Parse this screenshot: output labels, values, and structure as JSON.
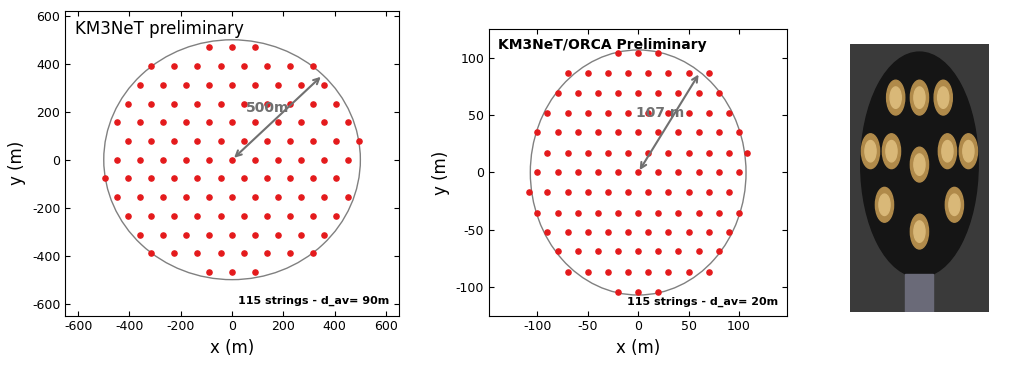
{
  "chart_data": [
    {
      "type": "scatter",
      "title": "KM3NeT preliminary",
      "annotation": "115 strings - d_av= 90m",
      "radius_label": "500m",
      "radius": 500,
      "x_label": "x (m)",
      "y_label": "y (m)",
      "color": "#e41a1c",
      "marker": "circle",
      "xlim": [
        -650,
        650
      ],
      "ylim": [
        -650,
        620
      ],
      "xticks": [
        -600,
        -400,
        -200,
        0,
        200,
        400,
        600
      ],
      "yticks": [
        -600,
        -400,
        -200,
        0,
        200,
        400,
        600
      ],
      "x": [
        -450,
        -360,
        -270,
        -180,
        -90,
        0,
        90,
        180,
        270,
        360,
        450,
        -405,
        -315,
        -225,
        -135,
        -45,
        45,
        135,
        225,
        315,
        405,
        -405,
        -315,
        -225,
        -135,
        -45,
        45,
        135,
        225,
        315,
        405,
        -450,
        -360,
        -270,
        -180,
        -90,
        0,
        90,
        180,
        270,
        360,
        450,
        -450,
        -360,
        -270,
        -180,
        -90,
        0,
        90,
        180,
        270,
        360,
        450,
        -405,
        -315,
        -225,
        -135,
        -45,
        45,
        135,
        225,
        315,
        405,
        -405,
        -315,
        -225,
        -135,
        -45,
        45,
        135,
        225,
        315,
        405,
        -360,
        -270,
        -180,
        -90,
        0,
        90,
        180,
        270,
        360,
        -360,
        -270,
        -180,
        -90,
        0,
        90,
        180,
        270,
        360,
        -225,
        -135,
        -45,
        45,
        135,
        225,
        -225,
        -135,
        -45,
        45,
        135,
        225,
        -90,
        0,
        90,
        -90,
        0,
        90,
        315,
        -315,
        315,
        -315,
        495,
        -495
      ],
      "y": [
        0,
        0,
        0,
        0,
        0,
        0,
        0,
        0,
        0,
        0,
        0,
        78,
        78,
        78,
        78,
        78,
        78,
        78,
        78,
        78,
        78,
        -78,
        -78,
        -78,
        -78,
        -78,
        -78,
        -78,
        -78,
        -78,
        -78,
        156,
        156,
        156,
        156,
        156,
        156,
        156,
        156,
        156,
        156,
        156,
        -156,
        -156,
        -156,
        -156,
        -156,
        -156,
        -156,
        -156,
        -156,
        -156,
        -156,
        234,
        234,
        234,
        234,
        234,
        234,
        234,
        234,
        234,
        234,
        -234,
        -234,
        -234,
        -234,
        -234,
        -234,
        -234,
        -234,
        -234,
        -234,
        312,
        312,
        312,
        312,
        312,
        312,
        312,
        312,
        312,
        -312,
        -312,
        -312,
        -312,
        -312,
        -312,
        -312,
        -312,
        -312,
        390,
        390,
        390,
        390,
        390,
        390,
        -390,
        -390,
        -390,
        -390,
        -390,
        -390,
        468,
        468,
        468,
        -468,
        -468,
        -468,
        390,
        390,
        -390,
        -390,
        78,
        -78
      ]
    },
    {
      "type": "scatter",
      "title": "KM3NeT/ORCA Preliminary",
      "annotation": "115 strings - d_av= 20m",
      "radius_label": "107 m",
      "radius": 107,
      "x_label": "x (m)",
      "y_label": "y (m)",
      "color": "#e41a1c",
      "marker": "circle",
      "xlim": [
        -148,
        148
      ],
      "ylim": [
        -125,
        125
      ],
      "xticks": [
        -100,
        -50,
        0,
        50,
        100
      ],
      "yticks": [
        -100,
        -50,
        0,
        50,
        100
      ],
      "x": [
        -100,
        -80,
        -60,
        -40,
        -20,
        0,
        20,
        40,
        60,
        80,
        100,
        -90,
        -70,
        -50,
        -30,
        -10,
        10,
        30,
        50,
        70,
        90,
        -90,
        -70,
        -50,
        -30,
        -10,
        10,
        30,
        50,
        70,
        90,
        -100,
        -80,
        -60,
        -40,
        -20,
        0,
        20,
        40,
        60,
        80,
        100,
        -100,
        -80,
        -60,
        -40,
        -20,
        0,
        20,
        40,
        60,
        80,
        100,
        -90,
        -70,
        -50,
        -30,
        -10,
        10,
        30,
        50,
        70,
        90,
        -90,
        -70,
        -50,
        -30,
        -10,
        10,
        30,
        50,
        70,
        90,
        -80,
        -60,
        -40,
        -20,
        0,
        20,
        40,
        60,
        80,
        -80,
        -60,
        -40,
        -20,
        0,
        20,
        40,
        60,
        80,
        -50,
        -30,
        -10,
        10,
        30,
        50,
        -50,
        -30,
        -10,
        10,
        30,
        50,
        -20,
        0,
        20,
        -20,
        0,
        20,
        70,
        -70,
        70,
        -70,
        108,
        -108
      ],
      "y": [
        0,
        0,
        0,
        0,
        0,
        0,
        0,
        0,
        0,
        0,
        0,
        17,
        17,
        17,
        17,
        17,
        17,
        17,
        17,
        17,
        17,
        -17,
        -17,
        -17,
        -17,
        -17,
        -17,
        -17,
        -17,
        -17,
        -17,
        35,
        35,
        35,
        35,
        35,
        35,
        35,
        35,
        35,
        35,
        35,
        -35,
        -35,
        -35,
        -35,
        -35,
        -35,
        -35,
        -35,
        -35,
        -35,
        -35,
        52,
        52,
        52,
        52,
        52,
        52,
        52,
        52,
        52,
        52,
        -52,
        -52,
        -52,
        -52,
        -52,
        -52,
        -52,
        -52,
        -52,
        -52,
        69,
        69,
        69,
        69,
        69,
        69,
        69,
        69,
        69,
        -69,
        -69,
        -69,
        -69,
        -69,
        -69,
        -69,
        -69,
        -69,
        87,
        87,
        87,
        87,
        87,
        87,
        -87,
        -87,
        -87,
        -87,
        -87,
        -87,
        104,
        104,
        104,
        -104,
        -104,
        -104,
        87,
        87,
        -87,
        -87,
        17,
        -17
      ]
    }
  ]
}
